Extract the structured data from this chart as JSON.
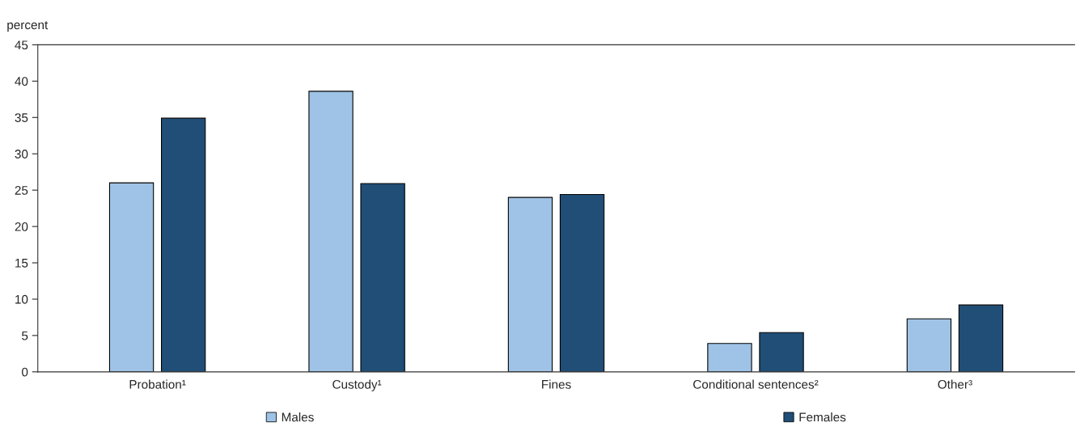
{
  "chart_data": {
    "type": "bar",
    "ylabel": "percent",
    "categories": [
      "Probation¹",
      "Custody¹",
      "Fines",
      "Conditional sentences²",
      "Other³"
    ],
    "series": [
      {
        "name": "Males",
        "color": "#9fc3e6",
        "values": [
          26.0,
          38.6,
          24.0,
          3.9,
          7.3
        ]
      },
      {
        "name": "Females",
        "color": "#204e77",
        "values": [
          34.9,
          25.9,
          24.4,
          5.4,
          9.2
        ]
      }
    ],
    "ylim": [
      0,
      45
    ],
    "yticks": [
      0,
      5,
      10,
      15,
      20,
      25,
      30,
      35,
      40,
      45
    ],
    "grid": false,
    "legend": "bottom"
  }
}
